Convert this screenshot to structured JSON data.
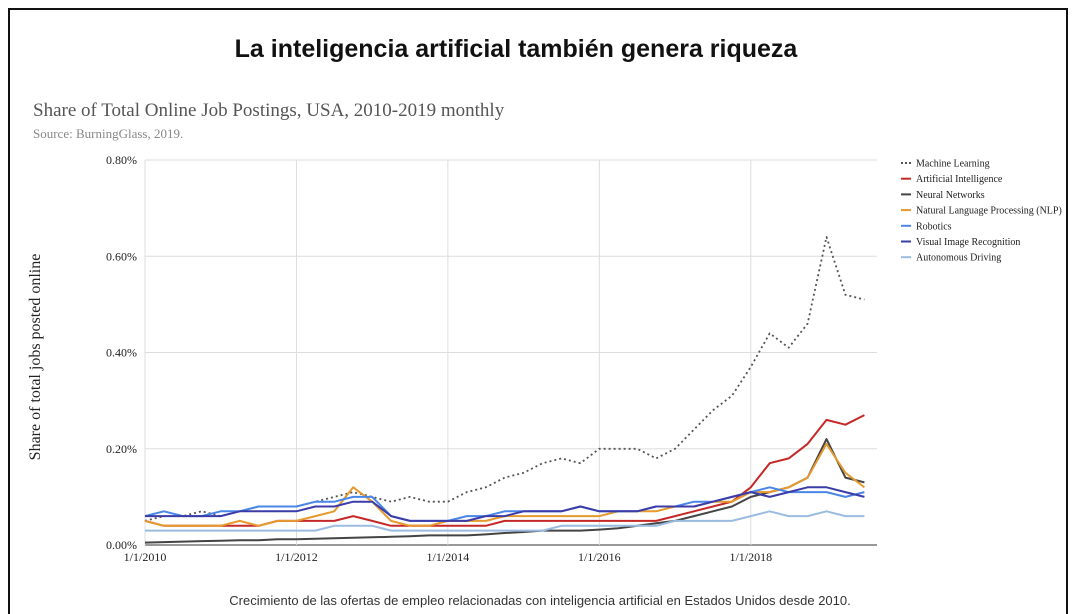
{
  "header": {
    "title": "La inteligencia artificial también genera riqueza"
  },
  "chart_data": {
    "type": "line",
    "title": "Share of Total Online Job Postings, USA, 2010-2019 monthly",
    "subtitle": "Source: BurningGlass, 2019.",
    "ylabel": "Share of total jobs posted online",
    "x": [
      "1/1/2010",
      "4/1/2010",
      "7/1/2010",
      "10/1/2010",
      "1/1/2011",
      "4/1/2011",
      "7/1/2011",
      "10/1/2011",
      "1/1/2012",
      "4/1/2012",
      "7/1/2012",
      "10/1/2012",
      "1/1/2013",
      "4/1/2013",
      "7/1/2013",
      "10/1/2013",
      "1/1/2014",
      "4/1/2014",
      "7/1/2014",
      "10/1/2014",
      "1/1/2015",
      "4/1/2015",
      "7/1/2015",
      "10/1/2015",
      "1/1/2016",
      "4/1/2016",
      "7/1/2016",
      "10/1/2016",
      "1/1/2017",
      "4/1/2017",
      "7/1/2017",
      "10/1/2017",
      "1/1/2018",
      "4/1/2018",
      "7/1/2018",
      "10/1/2018",
      "1/1/2019",
      "4/1/2019",
      "7/1/2019"
    ],
    "xlim": [
      "1/1/2010",
      "9/1/2019"
    ],
    "xticks": [
      "1/1/2010",
      "1/1/2012",
      "1/1/2014",
      "1/1/2016",
      "1/1/2018"
    ],
    "ylim": [
      0,
      0.8
    ],
    "yticks": [
      {
        "value": 0,
        "label": "0.00%"
      },
      {
        "value": 0.2,
        "label": "0.20%"
      },
      {
        "value": 0.4,
        "label": "0.40%"
      },
      {
        "value": 0.6,
        "label": "0.60%"
      },
      {
        "value": 0.8,
        "label": "0.80%"
      }
    ],
    "grid": true,
    "legend": "right",
    "series": [
      {
        "name": "Machine Learning",
        "color": "#555555",
        "style": "dotted",
        "values": [
          0.05,
          0.06,
          0.06,
          0.07,
          0.06,
          0.07,
          0.08,
          0.08,
          0.08,
          0.09,
          0.1,
          0.11,
          0.1,
          0.09,
          0.1,
          0.09,
          0.09,
          0.11,
          0.12,
          0.14,
          0.15,
          0.17,
          0.18,
          0.17,
          0.2,
          0.2,
          0.2,
          0.18,
          0.2,
          0.24,
          0.28,
          0.31,
          0.37,
          0.44,
          0.41,
          0.46,
          0.64,
          0.52,
          0.51
        ]
      },
      {
        "name": "Artificial Intelligence",
        "color": "#c62828",
        "style": "solid",
        "values": [
          0.05,
          0.04,
          0.04,
          0.04,
          0.04,
          0.04,
          0.04,
          0.05,
          0.05,
          0.05,
          0.05,
          0.06,
          0.05,
          0.04,
          0.04,
          0.04,
          0.04,
          0.04,
          0.04,
          0.05,
          0.05,
          0.05,
          0.05,
          0.05,
          0.05,
          0.05,
          0.05,
          0.05,
          0.06,
          0.07,
          0.08,
          0.09,
          0.12,
          0.17,
          0.18,
          0.21,
          0.26,
          0.25,
          0.27
        ]
      },
      {
        "name": "Neural Networks",
        "color": "#444444",
        "style": "solid",
        "values": [
          0.005,
          0.006,
          0.007,
          0.008,
          0.009,
          0.01,
          0.01,
          0.012,
          0.012,
          0.013,
          0.014,
          0.015,
          0.016,
          0.017,
          0.018,
          0.02,
          0.02,
          0.02,
          0.022,
          0.025,
          0.027,
          0.03,
          0.03,
          0.03,
          0.032,
          0.035,
          0.04,
          0.045,
          0.05,
          0.06,
          0.07,
          0.08,
          0.1,
          0.11,
          0.12,
          0.14,
          0.22,
          0.14,
          0.13
        ]
      },
      {
        "name": "Natural Language Processing (NLP)",
        "color": "#e69a2e",
        "style": "solid",
        "values": [
          0.05,
          0.04,
          0.04,
          0.04,
          0.04,
          0.05,
          0.04,
          0.05,
          0.05,
          0.06,
          0.07,
          0.12,
          0.09,
          0.05,
          0.04,
          0.04,
          0.05,
          0.05,
          0.05,
          0.06,
          0.06,
          0.06,
          0.06,
          0.06,
          0.06,
          0.07,
          0.07,
          0.07,
          0.08,
          0.08,
          0.09,
          0.09,
          0.11,
          0.11,
          0.12,
          0.14,
          0.21,
          0.15,
          0.12
        ]
      },
      {
        "name": "Robotics",
        "color": "#4a86e8",
        "style": "solid",
        "values": [
          0.06,
          0.07,
          0.06,
          0.06,
          0.07,
          0.07,
          0.08,
          0.08,
          0.08,
          0.09,
          0.09,
          0.1,
          0.1,
          0.06,
          0.05,
          0.05,
          0.05,
          0.06,
          0.06,
          0.07,
          0.07,
          0.07,
          0.07,
          0.08,
          0.07,
          0.07,
          0.07,
          0.08,
          0.08,
          0.09,
          0.09,
          0.1,
          0.11,
          0.12,
          0.11,
          0.11,
          0.11,
          0.1,
          0.11
        ]
      },
      {
        "name": "Visual Image Recognition",
        "color": "#3c3ca8",
        "style": "solid",
        "values": [
          0.06,
          0.06,
          0.06,
          0.06,
          0.06,
          0.07,
          0.07,
          0.07,
          0.07,
          0.08,
          0.08,
          0.09,
          0.09,
          0.06,
          0.05,
          0.05,
          0.05,
          0.05,
          0.06,
          0.06,
          0.07,
          0.07,
          0.07,
          0.08,
          0.07,
          0.07,
          0.07,
          0.08,
          0.08,
          0.08,
          0.09,
          0.1,
          0.11,
          0.1,
          0.11,
          0.12,
          0.12,
          0.11,
          0.1
        ]
      },
      {
        "name": "Autonomous Driving",
        "color": "#9bbbe0",
        "style": "solid",
        "values": [
          0.03,
          0.03,
          0.03,
          0.03,
          0.03,
          0.03,
          0.03,
          0.03,
          0.03,
          0.03,
          0.04,
          0.04,
          0.04,
          0.03,
          0.03,
          0.03,
          0.03,
          0.03,
          0.03,
          0.03,
          0.03,
          0.03,
          0.04,
          0.04,
          0.04,
          0.04,
          0.04,
          0.04,
          0.05,
          0.05,
          0.05,
          0.05,
          0.06,
          0.07,
          0.06,
          0.06,
          0.07,
          0.06,
          0.06
        ]
      }
    ]
  },
  "caption": "Crecimiento de las ofertas de empleo relacionadas con inteligencia artificial en Estados Unidos desde 2010."
}
